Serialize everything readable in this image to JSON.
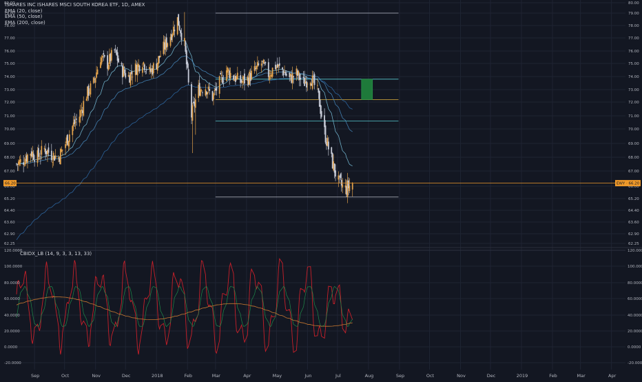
{
  "header": {
    "symbol_title": "ISHARES INC ISHARES MSCI SOUTH KOREA ETF, 1D, AMEX",
    "indicators": [
      "EMA (20, close)",
      "EMA (50, close)",
      "EMA (200, close)"
    ]
  },
  "oscillator": {
    "label": "CBIDX_LB (14, 9, 3, 3, 13, 33)"
  },
  "price_scale": {
    "ticks": [
      "80.00",
      "79.00",
      "78.00",
      "77.00",
      "76.00",
      "75.00",
      "74.00",
      "73.00",
      "72.00",
      "71.00",
      "70.00",
      "69.00",
      "68.00",
      "67.00",
      "66.00",
      "65.20",
      "64.40",
      "63.60",
      "62.90",
      "62.25"
    ],
    "badge_left": "66.20",
    "badge_right": "EWY · 66.20"
  },
  "osc_scale": {
    "ticks": [
      "120.0000",
      "100.0000",
      "80.0000",
      "60.0000",
      "40.0000",
      "20.0000",
      "0.0000",
      "-20.0000"
    ]
  },
  "time_axis": {
    "labels": [
      "Sep",
      "Oct",
      "Nov",
      "Dec",
      "2018",
      "Feb",
      "Mar",
      "Apr",
      "May",
      "Jun",
      "Jul",
      "Aug",
      "Sep",
      "Oct",
      "Nov",
      "Dec",
      "2019",
      "Feb",
      "Mar",
      "Apr"
    ]
  },
  "colors": {
    "background": "#131722",
    "grid": "#1f2433",
    "up_candle": "#e0a04a",
    "down_candle": "#c8ccd8",
    "ema20": "#7ec8e3",
    "ema50": "#4a90c8",
    "ema200": "#2f6ca8",
    "level_white": "#b8bcc8",
    "level_cyan": "#58c8d0",
    "level_orange": "#e0b040",
    "price_line": "#f09a2a",
    "target_box": "#1e7a3a",
    "osc_red": "#c8202a",
    "osc_green": "#1f8a4a",
    "osc_orange": "#c87830"
  },
  "chart_data": [
    {
      "type": "candlestick",
      "title": "ISHARES INC ISHARES MSCI SOUTH KOREA ETF, 1D, AMEX",
      "ylim": [
        62.25,
        80.0
      ],
      "scale": "log-like (TradingView price scale)",
      "x_range": [
        "2017-08-14",
        "2019-04-15"
      ],
      "close_profile": [
        [
          "2017-08-14",
          67.5
        ],
        [
          "2017-08-21",
          67.8
        ],
        [
          "2017-08-28",
          68.4
        ],
        [
          "2017-09-04",
          68.0
        ],
        [
          "2017-09-11",
          68.6
        ],
        [
          "2017-09-18",
          68.2
        ],
        [
          "2017-09-25",
          68.0
        ],
        [
          "2017-10-02",
          69.0
        ],
        [
          "2017-10-09",
          70.2
        ],
        [
          "2017-10-16",
          71.0
        ],
        [
          "2017-10-23",
          72.6
        ],
        [
          "2017-10-30",
          73.5
        ],
        [
          "2017-11-06",
          75.5
        ],
        [
          "2017-11-13",
          75.0
        ],
        [
          "2017-11-20",
          76.0
        ],
        [
          "2017-11-27",
          74.5
        ],
        [
          "2017-12-04",
          74.0
        ],
        [
          "2017-12-11",
          74.6
        ],
        [
          "2017-12-18",
          75.2
        ],
        [
          "2017-12-25",
          74.3
        ],
        [
          "2018-01-01",
          75.0
        ],
        [
          "2018-01-08",
          76.2
        ],
        [
          "2018-01-15",
          77.2
        ],
        [
          "2018-01-22",
          78.5
        ],
        [
          "2018-01-29",
          76.5
        ],
        [
          "2018-02-05",
          71.0
        ],
        [
          "2018-02-12",
          73.0
        ],
        [
          "2018-02-19",
          73.2
        ],
        [
          "2018-02-26",
          72.4
        ],
        [
          "2018-03-05",
          73.5
        ],
        [
          "2018-03-12",
          74.5
        ],
        [
          "2018-03-19",
          74.0
        ],
        [
          "2018-03-26",
          73.6
        ],
        [
          "2018-04-02",
          73.8
        ],
        [
          "2018-04-09",
          74.4
        ],
        [
          "2018-04-16",
          75.0
        ],
        [
          "2018-04-23",
          74.2
        ],
        [
          "2018-04-30",
          74.8
        ],
        [
          "2018-05-07",
          74.5
        ],
        [
          "2018-05-14",
          73.8
        ],
        [
          "2018-05-21",
          74.2
        ],
        [
          "2018-05-28",
          73.5
        ],
        [
          "2018-06-04",
          74.0
        ],
        [
          "2018-06-11",
          72.8
        ],
        [
          "2018-06-18",
          69.8
        ],
        [
          "2018-06-25",
          67.8
        ],
        [
          "2018-07-02",
          66.2
        ],
        [
          "2018-07-09",
          65.8
        ],
        [
          "2018-07-16",
          66.2
        ]
      ],
      "series": [
        {
          "name": "EMA (20, close)"
        },
        {
          "name": "EMA (50, close)"
        },
        {
          "name": "EMA (200, close)"
        }
      ],
      "horizontal_levels": [
        79.0,
        73.8,
        72.2,
        70.6,
        65.3
      ],
      "current_price": 66.2,
      "target_box": {
        "from_date": "2018-07-25",
        "to_date": "2018-08-05",
        "price_low": 72.2,
        "price_high": 73.8
      }
    },
    {
      "type": "line",
      "title": "CBIDX_LB (14, 9, 3, 3, 13, 33)",
      "ylim": [
        -25,
        125
      ],
      "x_range": [
        "2017-08-14",
        "2019-04-15"
      ]
    }
  ]
}
